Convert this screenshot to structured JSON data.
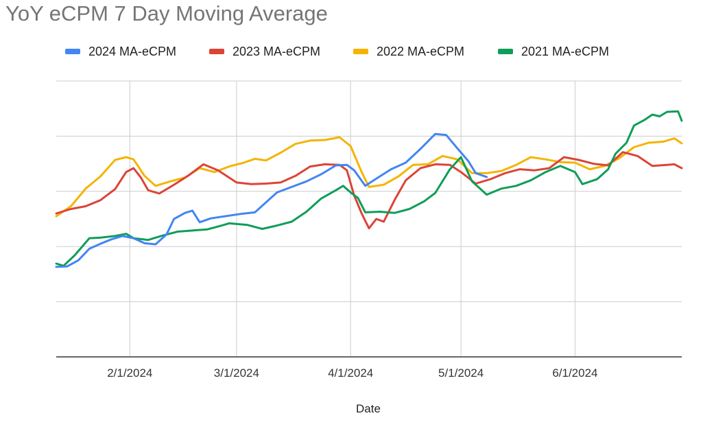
{
  "chart_data": {
    "type": "line",
    "title": "YoY eCPM 7 Day Moving Average",
    "xlabel": "Date",
    "ylabel": "",
    "x_range": [
      "1/12/2024",
      "6/30/2024"
    ],
    "x_ticks": [
      "2/1/2024",
      "3/1/2024",
      "4/1/2024",
      "5/1/2024",
      "6/1/2024"
    ],
    "y_tick_labels_visible": false,
    "ylim": [
      0,
      5
    ],
    "y_gridlines": [
      1,
      2,
      3,
      4,
      5
    ],
    "grid": true,
    "legend_position": "top",
    "series": [
      {
        "name": "2024 MA-eCPM",
        "color": "#4285F4",
        "points": [
          [
            "1/12/2024",
            1.63
          ],
          [
            "1/15/2024",
            1.64
          ],
          [
            "1/18/2024",
            1.75
          ],
          [
            "1/21/2024",
            1.96
          ],
          [
            "1/24/2024",
            2.05
          ],
          [
            "1/27/2024",
            2.13
          ],
          [
            "1/30/2024",
            2.19
          ],
          [
            "2/2/2024",
            2.15
          ],
          [
            "2/5/2024",
            2.06
          ],
          [
            "2/8/2024",
            2.04
          ],
          [
            "2/11/2024",
            2.22
          ],
          [
            "2/13/2024",
            2.5
          ],
          [
            "2/16/2024",
            2.61
          ],
          [
            "2/18/2024",
            2.65
          ],
          [
            "2/20/2024",
            2.44
          ],
          [
            "2/23/2024",
            2.51
          ],
          [
            "2/27/2024",
            2.55
          ],
          [
            "3/2/2024",
            2.59
          ],
          [
            "3/6/2024",
            2.62
          ],
          [
            "3/9/2024",
            2.8
          ],
          [
            "3/12/2024",
            2.98
          ],
          [
            "3/16/2024",
            3.08
          ],
          [
            "3/20/2024",
            3.18
          ],
          [
            "3/24/2024",
            3.31
          ],
          [
            "3/28/2024",
            3.47
          ],
          [
            "3/31/2024",
            3.48
          ],
          [
            "4/2/2024",
            3.38
          ],
          [
            "4/5/2024",
            3.1
          ],
          [
            "4/8/2024",
            3.23
          ],
          [
            "4/12/2024",
            3.4
          ],
          [
            "4/16/2024",
            3.52
          ],
          [
            "4/20/2024",
            3.77
          ],
          [
            "4/24/2024",
            4.04
          ],
          [
            "4/27/2024",
            4.02
          ],
          [
            "4/30/2024",
            3.78
          ],
          [
            "5/3/2024",
            3.55
          ],
          [
            "5/5/2024",
            3.33
          ],
          [
            "5/8/2024",
            3.26
          ]
        ]
      },
      {
        "name": "2023 MA-eCPM",
        "color": "#DB4437",
        "points": [
          [
            "1/12/2024",
            2.6
          ],
          [
            "1/16/2024",
            2.68
          ],
          [
            "1/20/2024",
            2.73
          ],
          [
            "1/24/2024",
            2.84
          ],
          [
            "1/28/2024",
            3.04
          ],
          [
            "1/31/2024",
            3.35
          ],
          [
            "2/2/2024",
            3.42
          ],
          [
            "2/4/2024",
            3.25
          ],
          [
            "2/6/2024",
            3.02
          ],
          [
            "2/9/2024",
            2.96
          ],
          [
            "2/13/2024",
            3.12
          ],
          [
            "2/17/2024",
            3.29
          ],
          [
            "2/21/2024",
            3.49
          ],
          [
            "2/25/2024",
            3.38
          ],
          [
            "3/1/2024",
            3.16
          ],
          [
            "3/5/2024",
            3.13
          ],
          [
            "3/9/2024",
            3.14
          ],
          [
            "3/13/2024",
            3.16
          ],
          [
            "3/17/2024",
            3.28
          ],
          [
            "3/21/2024",
            3.45
          ],
          [
            "3/25/2024",
            3.49
          ],
          [
            "3/29/2024",
            3.48
          ],
          [
            "3/31/2024",
            3.38
          ],
          [
            "4/2/2024",
            2.92
          ],
          [
            "4/4/2024",
            2.6
          ],
          [
            "4/6/2024",
            2.33
          ],
          [
            "4/8/2024",
            2.5
          ],
          [
            "4/10/2024",
            2.45
          ],
          [
            "4/13/2024",
            2.85
          ],
          [
            "4/16/2024",
            3.2
          ],
          [
            "4/20/2024",
            3.42
          ],
          [
            "4/24/2024",
            3.49
          ],
          [
            "4/28/2024",
            3.48
          ],
          [
            "5/1/2024",
            3.35
          ],
          [
            "5/5/2024",
            3.14
          ],
          [
            "5/9/2024",
            3.22
          ],
          [
            "5/13/2024",
            3.33
          ],
          [
            "5/17/2024",
            3.4
          ],
          [
            "5/21/2024",
            3.38
          ],
          [
            "5/25/2024",
            3.42
          ],
          [
            "5/29/2024",
            3.62
          ],
          [
            "6/2/2024",
            3.57
          ],
          [
            "6/6/2024",
            3.5
          ],
          [
            "6/10/2024",
            3.47
          ],
          [
            "6/14/2024",
            3.71
          ],
          [
            "6/18/2024",
            3.64
          ],
          [
            "6/22/2024",
            3.46
          ],
          [
            "6/26/2024",
            3.48
          ],
          [
            "6/28/2024",
            3.49
          ],
          [
            "6/30/2024",
            3.42
          ]
        ]
      },
      {
        "name": "2022 MA-eCPM",
        "color": "#F4B400",
        "points": [
          [
            "1/12/2024",
            2.55
          ],
          [
            "1/16/2024",
            2.73
          ],
          [
            "1/20/2024",
            3.05
          ],
          [
            "1/24/2024",
            3.27
          ],
          [
            "1/28/2024",
            3.57
          ],
          [
            "1/31/2024",
            3.62
          ],
          [
            "2/2/2024",
            3.58
          ],
          [
            "2/5/2024",
            3.28
          ],
          [
            "2/8/2024",
            3.1
          ],
          [
            "2/12/2024",
            3.18
          ],
          [
            "2/16/2024",
            3.25
          ],
          [
            "2/20/2024",
            3.42
          ],
          [
            "2/24/2024",
            3.35
          ],
          [
            "2/28/2024",
            3.45
          ],
          [
            "3/3/2024",
            3.52
          ],
          [
            "3/6/2024",
            3.59
          ],
          [
            "3/9/2024",
            3.56
          ],
          [
            "3/13/2024",
            3.7
          ],
          [
            "3/17/2024",
            3.86
          ],
          [
            "3/21/2024",
            3.92
          ],
          [
            "3/25/2024",
            3.93
          ],
          [
            "3/29/2024",
            3.98
          ],
          [
            "4/1/2024",
            3.82
          ],
          [
            "4/4/2024",
            3.35
          ],
          [
            "4/6/2024",
            3.08
          ],
          [
            "4/10/2024",
            3.12
          ],
          [
            "4/14/2024",
            3.27
          ],
          [
            "4/18/2024",
            3.48
          ],
          [
            "4/22/2024",
            3.49
          ],
          [
            "4/26/2024",
            3.64
          ],
          [
            "4/30/2024",
            3.58
          ],
          [
            "5/4/2024",
            3.33
          ],
          [
            "5/8/2024",
            3.33
          ],
          [
            "5/12/2024",
            3.37
          ],
          [
            "5/16/2024",
            3.48
          ],
          [
            "5/20/2024",
            3.62
          ],
          [
            "5/24/2024",
            3.58
          ],
          [
            "5/28/2024",
            3.53
          ],
          [
            "6/1/2024",
            3.52
          ],
          [
            "6/5/2024",
            3.4
          ],
          [
            "6/9/2024",
            3.46
          ],
          [
            "6/13/2024",
            3.6
          ],
          [
            "6/17/2024",
            3.8
          ],
          [
            "6/21/2024",
            3.88
          ],
          [
            "6/25/2024",
            3.9
          ],
          [
            "6/28/2024",
            3.96
          ],
          [
            "6/30/2024",
            3.87
          ]
        ]
      },
      {
        "name": "2021 MA-eCPM",
        "color": "#0F9D58",
        "points": [
          [
            "1/12/2024",
            1.69
          ],
          [
            "1/14/2024",
            1.65
          ],
          [
            "1/17/2024",
            1.84
          ],
          [
            "1/21/2024",
            2.15
          ],
          [
            "1/24/2024",
            2.16
          ],
          [
            "1/28/2024",
            2.19
          ],
          [
            "1/31/2024",
            2.23
          ],
          [
            "2/2/2024",
            2.15
          ],
          [
            "2/6/2024",
            2.12
          ],
          [
            "2/10/2024",
            2.2
          ],
          [
            "2/14/2024",
            2.27
          ],
          [
            "2/18/2024",
            2.29
          ],
          [
            "2/22/2024",
            2.31
          ],
          [
            "2/26/2024",
            2.38
          ],
          [
            "2/28/2024",
            2.42
          ],
          [
            "3/4/2024",
            2.39
          ],
          [
            "3/8/2024",
            2.32
          ],
          [
            "3/12/2024",
            2.38
          ],
          [
            "3/16/2024",
            2.45
          ],
          [
            "3/20/2024",
            2.63
          ],
          [
            "3/24/2024",
            2.87
          ],
          [
            "3/28/2024",
            3.02
          ],
          [
            "3/30/2024",
            3.1
          ],
          [
            "4/1/2024",
            2.98
          ],
          [
            "4/3/2024",
            2.88
          ],
          [
            "4/5/2024",
            2.62
          ],
          [
            "4/9/2024",
            2.63
          ],
          [
            "4/13/2024",
            2.61
          ],
          [
            "4/17/2024",
            2.68
          ],
          [
            "4/21/2024",
            2.82
          ],
          [
            "4/24/2024",
            2.97
          ],
          [
            "4/28/2024",
            3.4
          ],
          [
            "5/1/2024",
            3.62
          ],
          [
            "5/4/2024",
            3.18
          ],
          [
            "5/8/2024",
            2.94
          ],
          [
            "5/12/2024",
            3.05
          ],
          [
            "5/16/2024",
            3.1
          ],
          [
            "5/20/2024",
            3.2
          ],
          [
            "5/24/2024",
            3.35
          ],
          [
            "5/28/2024",
            3.46
          ],
          [
            "6/1/2024",
            3.35
          ],
          [
            "6/3/2024",
            3.13
          ],
          [
            "6/7/2024",
            3.22
          ],
          [
            "6/10/2024",
            3.4
          ],
          [
            "6/12/2024",
            3.68
          ],
          [
            "6/15/2024",
            3.88
          ],
          [
            "6/17/2024",
            4.19
          ],
          [
            "6/20/2024",
            4.3
          ],
          [
            "6/22/2024",
            4.39
          ],
          [
            "6/24/2024",
            4.36
          ],
          [
            "6/26/2024",
            4.44
          ],
          [
            "6/29/2024",
            4.45
          ],
          [
            "6/30/2024",
            4.28
          ]
        ]
      }
    ]
  },
  "colors": {
    "gridline": "#cccccc",
    "baseline": "#333333",
    "title": "#757575",
    "text": "#222222"
  }
}
